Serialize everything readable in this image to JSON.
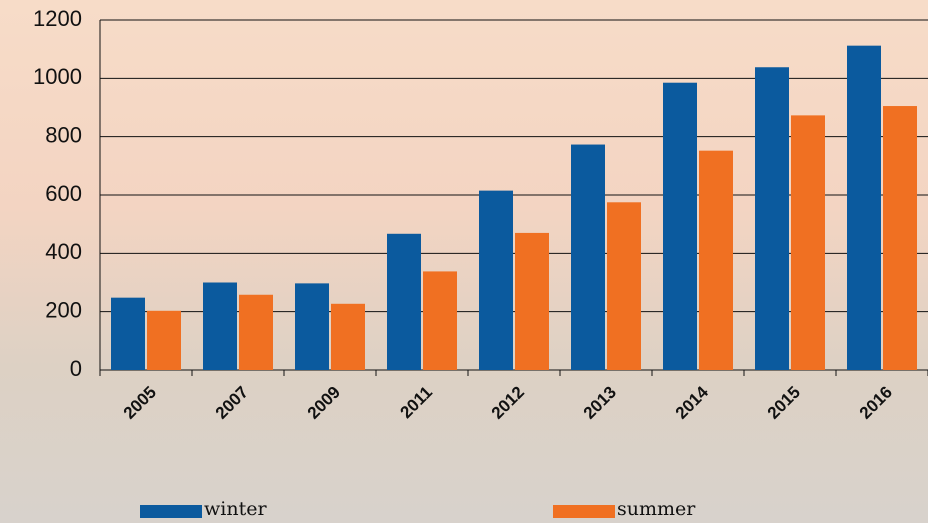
{
  "chart_data": {
    "type": "bar",
    "categories": [
      "2005",
      "2007",
      "2009",
      "2011",
      "2012",
      "2013",
      "2014",
      "2015",
      "2016"
    ],
    "series": [
      {
        "name": "winter",
        "color": "#0b5a9e",
        "values": [
          248,
          300,
          297,
          467,
          615,
          773,
          985,
          1038,
          1112
        ]
      },
      {
        "name": "summer",
        "color": "#f07022",
        "values": [
          203,
          258,
          227,
          338,
          470,
          575,
          752,
          873,
          905
        ]
      }
    ],
    "ylim": [
      0,
      1200
    ],
    "yticks": [
      0,
      200,
      400,
      600,
      800,
      1000,
      1200
    ],
    "grid": true
  }
}
